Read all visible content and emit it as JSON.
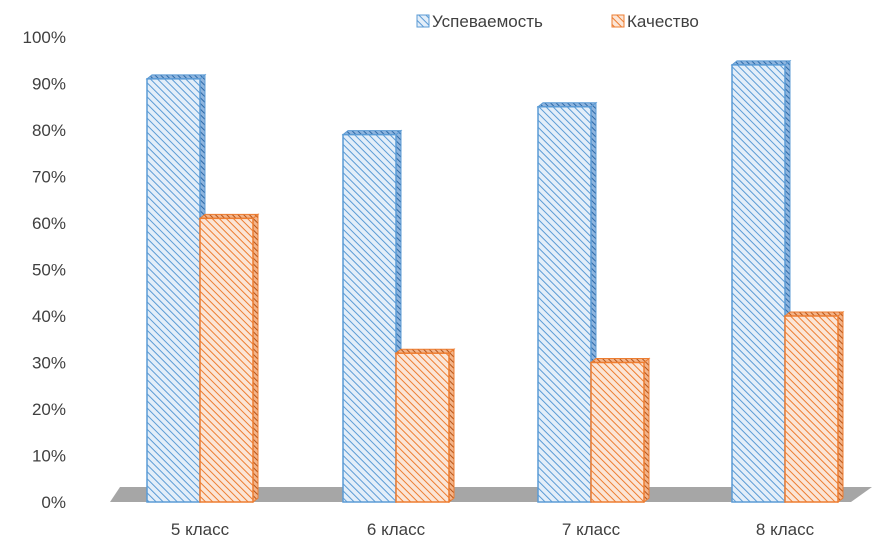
{
  "chart_data": {
    "type": "bar",
    "categories": [
      "5 класс",
      "6 класс",
      "7 класс",
      "8 класс"
    ],
    "series": [
      {
        "name": "Успеваемость",
        "values": [
          91,
          79,
          85,
          94
        ],
        "color": "#5B9BD5"
      },
      {
        "name": "Качество",
        "values": [
          61,
          32,
          30,
          40
        ],
        "color": "#ED7D31"
      }
    ],
    "yticks": [
      "0%",
      "10%",
      "20%",
      "30%",
      "40%",
      "50%",
      "60%",
      "70%",
      "80%",
      "90%",
      "100%"
    ],
    "ylim": [
      0,
      100
    ],
    "legend_position": "top-right",
    "grid": false,
    "bar_style": "3d-hatched"
  }
}
